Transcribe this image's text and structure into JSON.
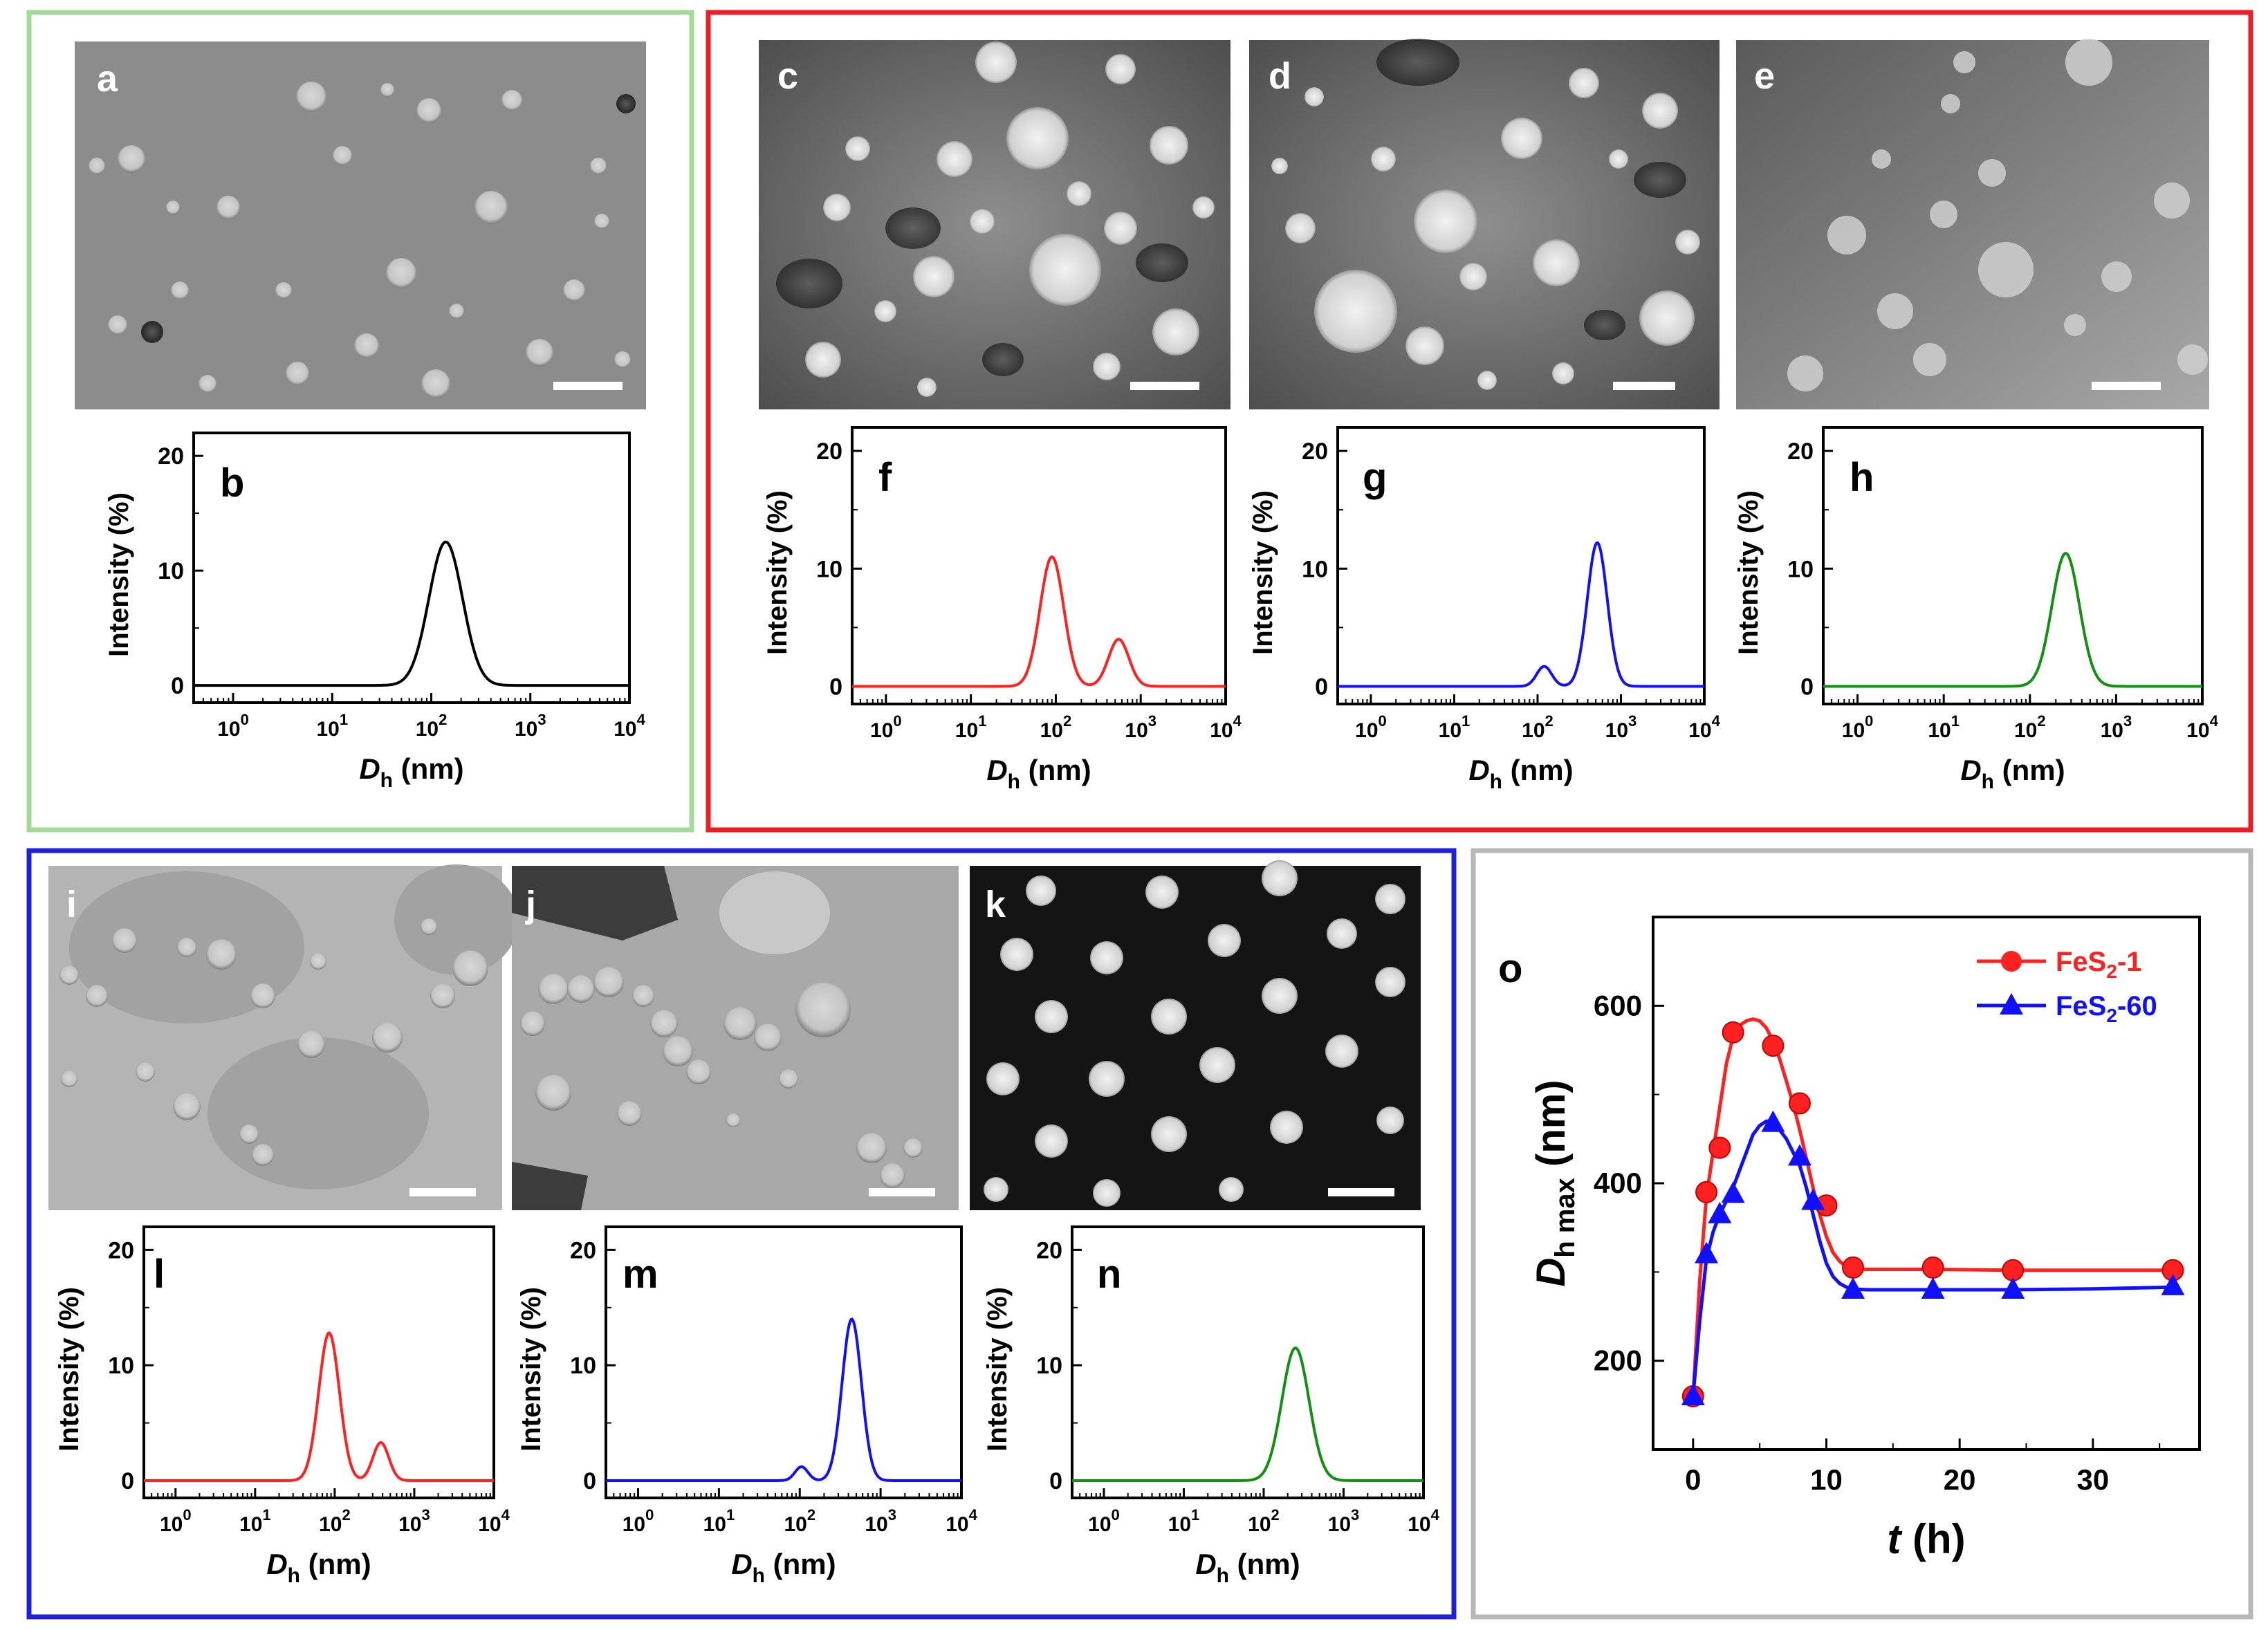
{
  "panel_letters": {
    "a": "a",
    "c": "c",
    "d": "d",
    "e": "e",
    "i": "i",
    "j": "j",
    "k": "k"
  },
  "colors": {
    "green_frame": "#a6d89a",
    "red_frame": "#ee1c24",
    "blue_frame": "#1f1fd6",
    "gray_frame": "#b8b8b8",
    "black": "#000000",
    "red": "#ff2020",
    "blue": "#1010ff",
    "green": "#119011"
  },
  "chart_data": [
    {
      "panel": "b",
      "type": "line",
      "color_key": "black",
      "xlabel_main": "D",
      "xlabel_sub": "h",
      "xlabel_unit": " (nm)",
      "ylabel": "Intensity (%)",
      "xscale": "log",
      "xlim": [
        0.4,
        10000
      ],
      "ylim": [
        -1.5,
        22
      ],
      "xticks": [
        {
          "base": "10",
          "exp": "0"
        },
        {
          "base": "10",
          "exp": "1"
        },
        {
          "base": "10",
          "exp": "2"
        },
        {
          "base": "10",
          "exp": "3"
        },
        {
          "base": "10",
          "exp": "4"
        }
      ],
      "yticks": [
        "0",
        "10",
        "20"
      ],
      "peaks": [
        {
          "center": 140,
          "height": 12.5,
          "sigma_log": 0.17
        }
      ]
    },
    {
      "panel": "f",
      "type": "line",
      "color_key": "red",
      "xlabel_main": "D",
      "xlabel_sub": "h",
      "xlabel_unit": " (nm)",
      "ylabel": "Intensity (%)",
      "xscale": "log",
      "xlim": [
        0.4,
        10000
      ],
      "ylim": [
        -1.5,
        22
      ],
      "xticks": [
        {
          "base": "10",
          "exp": "0"
        },
        {
          "base": "10",
          "exp": "1"
        },
        {
          "base": "10",
          "exp": "2"
        },
        {
          "base": "10",
          "exp": "3"
        },
        {
          "base": "10",
          "exp": "4"
        }
      ],
      "yticks": [
        "0",
        "10",
        "20"
      ],
      "peaks": [
        {
          "center": 90,
          "height": 11.0,
          "sigma_log": 0.14
        },
        {
          "center": 550,
          "height": 4.0,
          "sigma_log": 0.12
        }
      ]
    },
    {
      "panel": "g",
      "type": "line",
      "color_key": "blue",
      "xlabel_main": "D",
      "xlabel_sub": "h",
      "xlabel_unit": " (nm)",
      "ylabel": "Intensity (%)",
      "xscale": "log",
      "xlim": [
        0.4,
        10000
      ],
      "ylim": [
        -1.5,
        22
      ],
      "xticks": [
        {
          "base": "10",
          "exp": "0"
        },
        {
          "base": "10",
          "exp": "1"
        },
        {
          "base": "10",
          "exp": "2"
        },
        {
          "base": "10",
          "exp": "3"
        },
        {
          "base": "10",
          "exp": "4"
        }
      ],
      "yticks": [
        "0",
        "10",
        "20"
      ],
      "peaks": [
        {
          "center": 120,
          "height": 1.7,
          "sigma_log": 0.09
        },
        {
          "center": 520,
          "height": 12.2,
          "sigma_log": 0.12
        }
      ]
    },
    {
      "panel": "h",
      "type": "line",
      "color_key": "green",
      "xlabel_main": "D",
      "xlabel_sub": "h",
      "xlabel_unit": " (nm)",
      "ylabel": "Intensity (%)",
      "xscale": "log",
      "xlim": [
        0.4,
        10000
      ],
      "ylim": [
        -1.5,
        22
      ],
      "xticks": [
        {
          "base": "10",
          "exp": "0"
        },
        {
          "base": "10",
          "exp": "1"
        },
        {
          "base": "10",
          "exp": "2"
        },
        {
          "base": "10",
          "exp": "3"
        },
        {
          "base": "10",
          "exp": "4"
        }
      ],
      "yticks": [
        "0",
        "10",
        "20"
      ],
      "peaks": [
        {
          "center": 260,
          "height": 11.3,
          "sigma_log": 0.16
        }
      ]
    },
    {
      "panel": "l",
      "type": "line",
      "color_key": "red",
      "xlabel_main": "D",
      "xlabel_sub": "h",
      "xlabel_unit": " (nm)",
      "ylabel": "Intensity (%)",
      "xscale": "log",
      "xlim": [
        0.4,
        10000
      ],
      "ylim": [
        -1.5,
        22
      ],
      "xticks": [
        {
          "base": "10",
          "exp": "0"
        },
        {
          "base": "10",
          "exp": "1"
        },
        {
          "base": "10",
          "exp": "2"
        },
        {
          "base": "10",
          "exp": "3"
        },
        {
          "base": "10",
          "exp": "4"
        }
      ],
      "yticks": [
        "0",
        "10",
        "20"
      ],
      "peaks": [
        {
          "center": 85,
          "height": 12.8,
          "sigma_log": 0.13
        },
        {
          "center": 380,
          "height": 3.3,
          "sigma_log": 0.1
        }
      ]
    },
    {
      "panel": "m",
      "type": "line",
      "color_key": "blue",
      "xlabel_main": "D",
      "xlabel_sub": "h",
      "xlabel_unit": " (nm)",
      "ylabel": "Intensity (%)",
      "xscale": "log",
      "xlim": [
        0.4,
        10000
      ],
      "ylim": [
        -1.5,
        22
      ],
      "xticks": [
        {
          "base": "10",
          "exp": "0"
        },
        {
          "base": "10",
          "exp": "1"
        },
        {
          "base": "10",
          "exp": "2"
        },
        {
          "base": "10",
          "exp": "3"
        },
        {
          "base": "10",
          "exp": "4"
        }
      ],
      "yticks": [
        "0",
        "10",
        "20"
      ],
      "peaks": [
        {
          "center": 105,
          "height": 1.2,
          "sigma_log": 0.08
        },
        {
          "center": 440,
          "height": 14.0,
          "sigma_log": 0.12
        }
      ]
    },
    {
      "panel": "n",
      "type": "line",
      "color_key": "green",
      "xlabel_main": "D",
      "xlabel_sub": "h",
      "xlabel_unit": " (nm)",
      "ylabel": "Intensity (%)",
      "xscale": "log",
      "xlim": [
        0.4,
        10000
      ],
      "ylim": [
        -1.5,
        22
      ],
      "xticks": [
        {
          "base": "10",
          "exp": "0"
        },
        {
          "base": "10",
          "exp": "1"
        },
        {
          "base": "10",
          "exp": "2"
        },
        {
          "base": "10",
          "exp": "3"
        },
        {
          "base": "10",
          "exp": "4"
        }
      ],
      "yticks": [
        "0",
        "10",
        "20"
      ],
      "peaks": [
        {
          "center": 250,
          "height": 11.5,
          "sigma_log": 0.17
        }
      ]
    },
    {
      "panel": "o",
      "type": "line",
      "xlabel": "t",
      "xlabel_unit": " (h)",
      "ylabel_main": "D",
      "ylabel_sub": "h max",
      "ylabel_unit": " (nm)",
      "xlim": [
        -3,
        38
      ],
      "ylim": [
        100,
        700
      ],
      "xticks": [
        "0",
        "10",
        "20",
        "30"
      ],
      "yticks": [
        "200",
        "400",
        "600"
      ],
      "series": [
        {
          "name_main": "FeS",
          "name_sub": "2",
          "name_tail": "-1",
          "color_key": "red",
          "marker": "circle",
          "x": [
            0,
            1,
            2,
            3,
            6,
            8,
            10,
            12,
            18,
            24,
            36
          ],
          "y": [
            160,
            390,
            440,
            570,
            555,
            490,
            375,
            305,
            305,
            302,
            302
          ],
          "curve_x": [
            0,
            0.5,
            1,
            1.5,
            2,
            2.5,
            3,
            3.5,
            4,
            4.5,
            5,
            5.5,
            6,
            6.5,
            7,
            7.5,
            8,
            8.5,
            9,
            9.5,
            10,
            10.5,
            11,
            11.5,
            12,
            13,
            15,
            18,
            24,
            30,
            36
          ],
          "curve_y": [
            160,
            290,
            385,
            435,
            485,
            535,
            565,
            578,
            583,
            585,
            583,
            575,
            560,
            540,
            515,
            490,
            460,
            428,
            395,
            365,
            340,
            322,
            312,
            306,
            304,
            303,
            303,
            303,
            302,
            302,
            302
          ]
        },
        {
          "name_main": "FeS",
          "name_sub": "2",
          "name_tail": "-60",
          "color_key": "blue",
          "marker": "triangle",
          "x": [
            0,
            1,
            2,
            3,
            6,
            8,
            9,
            12,
            18,
            24,
            36
          ],
          "y": [
            160,
            320,
            365,
            388,
            468,
            430,
            380,
            280,
            280,
            280,
            284
          ],
          "curve_x": [
            0,
            0.5,
            1,
            1.5,
            2,
            2.5,
            3,
            3.5,
            4,
            4.5,
            5,
            5.5,
            6,
            6.5,
            7,
            7.5,
            8,
            8.5,
            9,
            9.5,
            10,
            10.5,
            11,
            11.5,
            12,
            13,
            15,
            18,
            24,
            30,
            36
          ],
          "curve_y": [
            160,
            245,
            315,
            345,
            365,
            380,
            395,
            415,
            435,
            455,
            465,
            470,
            470,
            460,
            450,
            435,
            420,
            395,
            365,
            335,
            310,
            295,
            287,
            283,
            281,
            280,
            280,
            280,
            280,
            281,
            283
          ]
        }
      ]
    }
  ]
}
